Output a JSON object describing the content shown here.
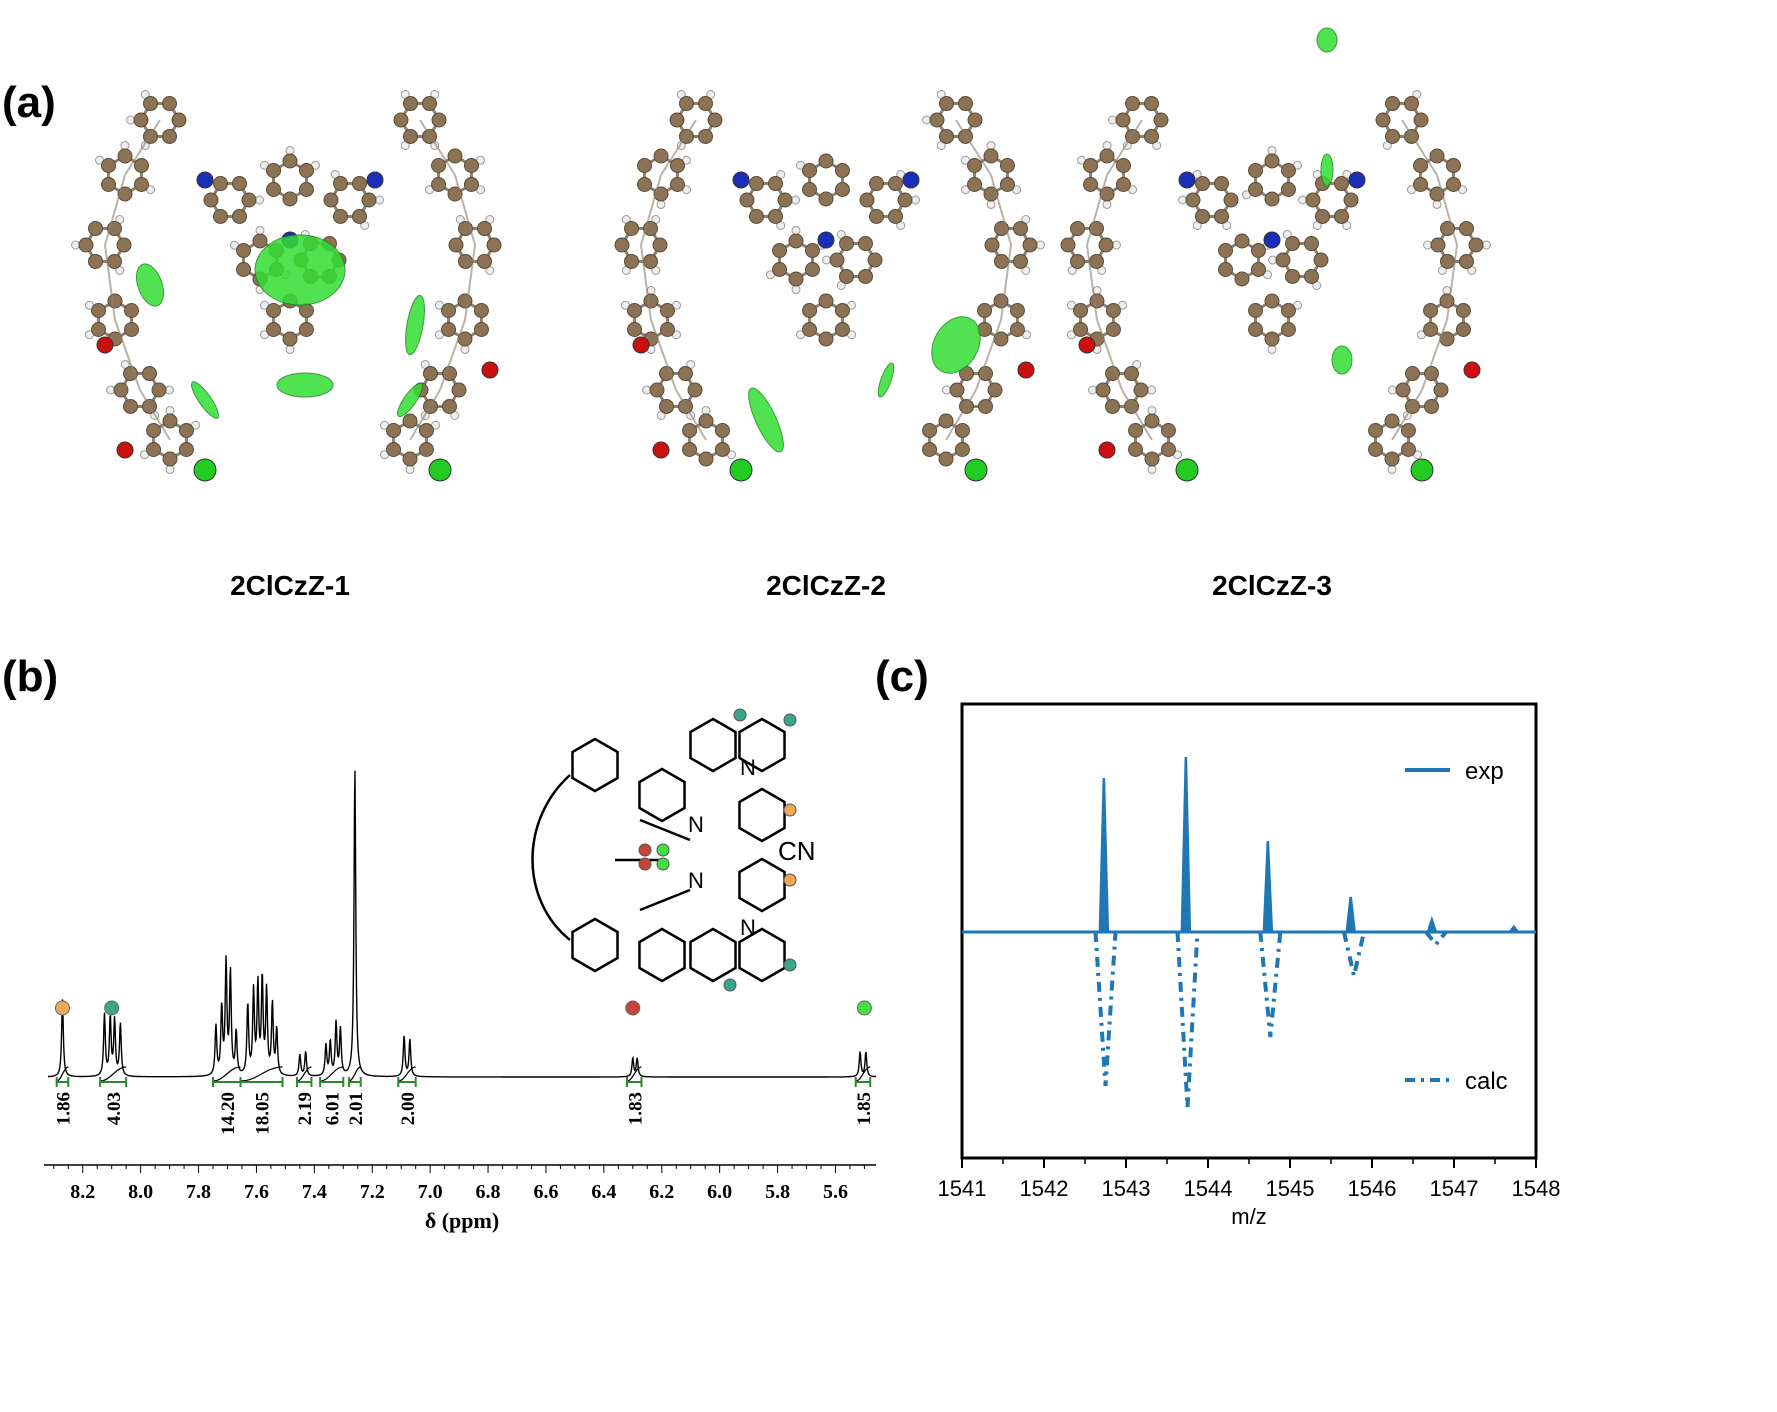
{
  "panels": {
    "a": {
      "label": "(a)",
      "structures": [
        {
          "name": "2ClCzZ-1"
        },
        {
          "name": "2ClCzZ-2"
        },
        {
          "name": "2ClCzZ-3"
        }
      ]
    },
    "b": {
      "label": "(b)"
    },
    "c": {
      "label": "(c)"
    }
  },
  "atom_colors": {
    "carbon": "#8c7355",
    "hydrogen": "#eeeeee",
    "nitrogen": "#1a2fb8",
    "oxygen": "#cc1010",
    "chlorine": "#22cc22",
    "interaction_surface": "#33dd33"
  },
  "chart_data": [
    {
      "type": "line",
      "panel": "b",
      "title": "",
      "xlabel": "δ (ppm)",
      "ylabel": "",
      "xlim": [
        8.32,
        5.46
      ],
      "x_reversed": true,
      "x_ticks": [
        "8.2",
        "8.0",
        "7.8",
        "7.6",
        "7.4",
        "7.2",
        "7.0",
        "6.8",
        "6.6",
        "6.4",
        "6.2",
        "6.0",
        "5.8",
        "5.6"
      ],
      "peaks": [
        {
          "ppm": 8.27,
          "height": 0.25
        },
        {
          "ppm": 8.125,
          "height": 0.2
        },
        {
          "ppm": 8.105,
          "height": 0.19
        },
        {
          "ppm": 8.09,
          "height": 0.18
        },
        {
          "ppm": 8.07,
          "height": 0.17
        },
        {
          "ppm": 7.74,
          "height": 0.16
        },
        {
          "ppm": 7.72,
          "height": 0.22
        },
        {
          "ppm": 7.705,
          "height": 0.36
        },
        {
          "ppm": 7.69,
          "height": 0.33
        },
        {
          "ppm": 7.67,
          "height": 0.14
        },
        {
          "ppm": 7.63,
          "height": 0.23
        },
        {
          "ppm": 7.61,
          "height": 0.27
        },
        {
          "ppm": 7.595,
          "height": 0.29
        },
        {
          "ppm": 7.58,
          "height": 0.31
        },
        {
          "ppm": 7.565,
          "height": 0.27
        },
        {
          "ppm": 7.545,
          "height": 0.23
        },
        {
          "ppm": 7.53,
          "height": 0.15
        },
        {
          "ppm": 7.45,
          "height": 0.07
        },
        {
          "ppm": 7.43,
          "height": 0.08
        },
        {
          "ppm": 7.36,
          "height": 0.1
        },
        {
          "ppm": 7.345,
          "height": 0.11
        },
        {
          "ppm": 7.325,
          "height": 0.17
        },
        {
          "ppm": 7.31,
          "height": 0.15
        },
        {
          "ppm": 7.26,
          "height": 1.0
        },
        {
          "ppm": 7.09,
          "height": 0.13
        },
        {
          "ppm": 7.07,
          "height": 0.12
        },
        {
          "ppm": 6.3,
          "height": 0.06
        },
        {
          "ppm": 6.285,
          "height": 0.06
        },
        {
          "ppm": 5.515,
          "height": 0.08
        },
        {
          "ppm": 5.495,
          "height": 0.08
        }
      ],
      "integrals": [
        {
          "value": "1.86",
          "from": 8.29,
          "to": 8.25
        },
        {
          "value": "4.03",
          "from": 8.14,
          "to": 8.05
        },
        {
          "value": "14.20",
          "from": 7.75,
          "to": 7.655
        },
        {
          "value": "18.05",
          "from": 7.655,
          "to": 7.51
        },
        {
          "value": "2.19",
          "from": 7.46,
          "to": 7.41
        },
        {
          "value": "6.01",
          "from": 7.38,
          "to": 7.3
        },
        {
          "value": "2.01",
          "from": 7.28,
          "to": 7.24
        },
        {
          "value": "2.00",
          "from": 7.11,
          "to": 7.05
        },
        {
          "value": "1.83",
          "from": 6.32,
          "to": 6.27
        },
        {
          "value": "1.85",
          "from": 5.53,
          "to": 5.48
        }
      ],
      "peak_markers": [
        {
          "ppm": 8.27,
          "color": "#f0a858"
        },
        {
          "ppm": 8.1,
          "color": "#3aa58a"
        },
        {
          "ppm": 6.3,
          "color": "#c4453a"
        },
        {
          "ppm": 5.5,
          "color": "#44e044"
        }
      ],
      "inset_label": "CN",
      "inset_atom_label": "N"
    },
    {
      "type": "line",
      "panel": "c",
      "title": "",
      "xlabel": "m/z",
      "ylabel": "",
      "xlim": [
        1541,
        1548
      ],
      "x_ticks": [
        "1541",
        "1542",
        "1543",
        "1544",
        "1545",
        "1546",
        "1547",
        "1548"
      ],
      "series": [
        {
          "name": "exp",
          "style": "solid",
          "color": "#1f77b4",
          "x": [
            1542.73,
            1543.73,
            1544.73,
            1545.74,
            1546.73,
            1547.73
          ],
          "values": [
            0.88,
            1.0,
            0.52,
            0.2,
            0.07,
            0.03
          ]
        },
        {
          "name": "calc",
          "style": "dash-dot",
          "color": "#1f77b4",
          "x": [
            1542.75,
            1543.75,
            1544.76,
            1545.78,
            1546.78
          ],
          "values": [
            -0.88,
            -1.0,
            -0.6,
            -0.25,
            -0.07
          ]
        }
      ],
      "legend": "right"
    }
  ]
}
